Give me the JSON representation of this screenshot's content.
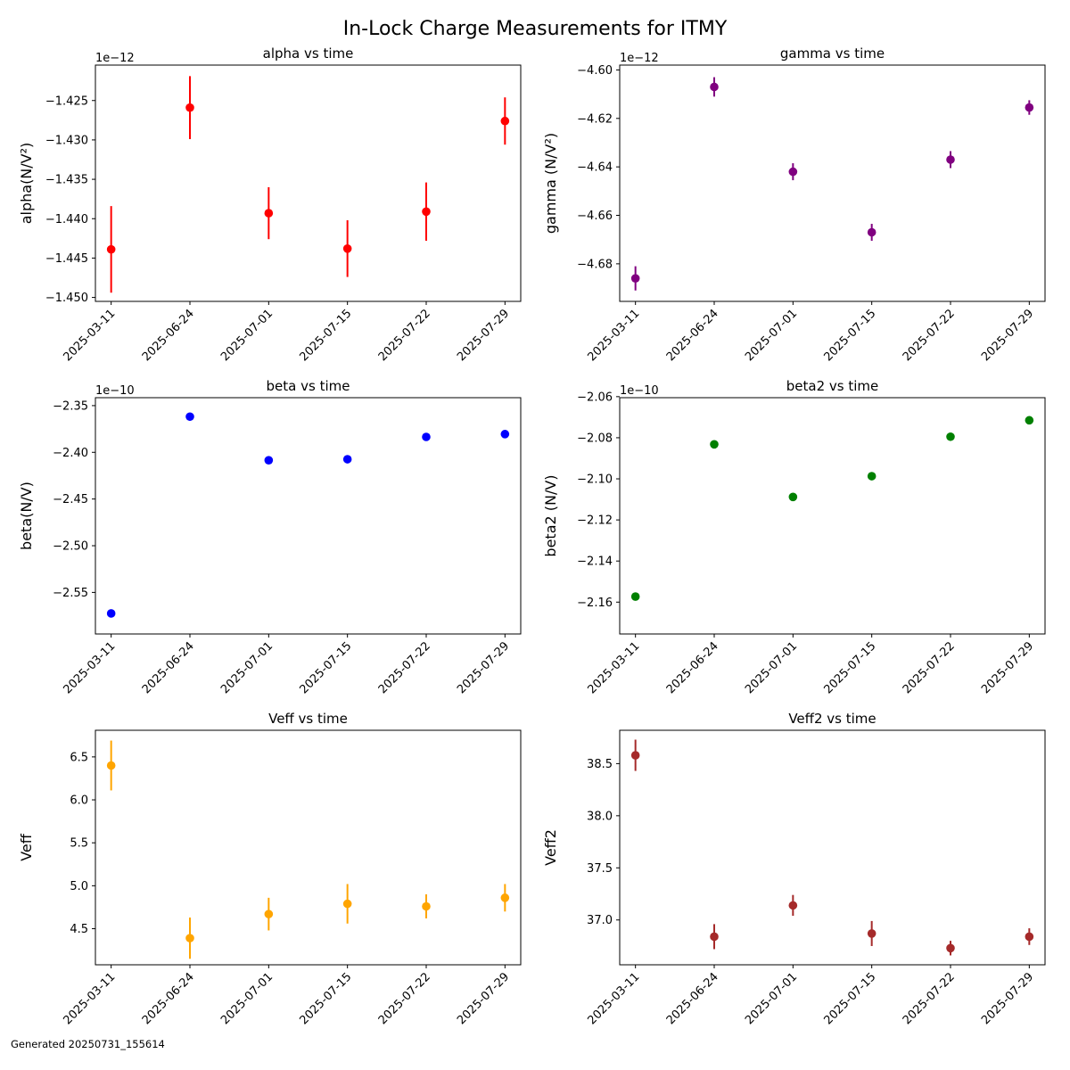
{
  "page": {
    "title": "In-Lock Charge Measurements for ITMY",
    "footer": "Generated 20250731_155614"
  },
  "chart_data": [
    {
      "type": "scatter",
      "title": "alpha vs time",
      "ylabel": "alpha(N/V²)",
      "scale_label": "1e−12",
      "color": "#ff0000",
      "dates": [
        "2025-03-11",
        "2025-06-24",
        "2025-07-01",
        "2025-07-15",
        "2025-07-22",
        "2025-07-29"
      ],
      "y": [
        -1.4439e-12,
        -1.4259e-12,
        -1.4393e-12,
        -1.4438e-12,
        -1.4391e-12,
        -1.4276e-12
      ],
      "yerr": [
        5.5e-15,
        4e-15,
        3.3e-15,
        3.6e-15,
        3.7e-15,
        3e-15
      ],
      "ylim": [
        -1.4505e-12,
        -1.4205e-12
      ],
      "yticks": [
        -1.45e-12,
        -1.445e-12,
        -1.44e-12,
        -1.435e-12,
        -1.43e-12,
        -1.425e-12
      ],
      "yticklabels": [
        "−1.450",
        "−1.445",
        "−1.440",
        "−1.435",
        "−1.430",
        "−1.425"
      ],
      "grid": false
    },
    {
      "type": "scatter",
      "title": "gamma vs time",
      "ylabel": "gamma (N/V²)",
      "scale_label": "1e−12",
      "color": "#800080",
      "dates": [
        "2025-03-11",
        "2025-06-24",
        "2025-07-01",
        "2025-07-15",
        "2025-07-22",
        "2025-07-29"
      ],
      "y": [
        -4.686e-12,
        -4.607e-12,
        -4.642e-12,
        -4.667e-12,
        -4.637e-12,
        -4.6155e-12
      ],
      "yerr": [
        5e-15,
        4e-15,
        3.5e-15,
        3.5e-15,
        3.5e-15,
        3e-15
      ],
      "ylim": [
        -4.6955e-12,
        -4.598e-12
      ],
      "yticks": [
        -4.68e-12,
        -4.66e-12,
        -4.64e-12,
        -4.62e-12,
        -4.6e-12
      ],
      "yticklabels": [
        "−4.68",
        "−4.66",
        "−4.64",
        "−4.62",
        "−4.60"
      ],
      "grid": false
    },
    {
      "type": "scatter",
      "title": "beta vs time",
      "ylabel": "beta(N/V)",
      "scale_label": "1e−10",
      "color": "#0000ff",
      "dates": [
        "2025-03-11",
        "2025-06-24",
        "2025-07-01",
        "2025-07-15",
        "2025-07-22",
        "2025-07-29"
      ],
      "y": [
        -2.5725e-10,
        -2.3618e-10,
        -2.4085e-10,
        -2.4074e-10,
        -2.3835e-10,
        -2.3805e-10
      ],
      "yerr": [
        1.2e-13,
        1.1e-13,
        9e-14,
        1e-13,
        6e-14,
        7e-14
      ],
      "ylim": [
        -2.5945e-10,
        -2.3415e-10
      ],
      "yticks": [
        -2.55e-10,
        -2.5e-10,
        -2.45e-10,
        -2.4e-10,
        -2.35e-10
      ],
      "yticklabels": [
        "−2.55",
        "−2.50",
        "−2.45",
        "−2.40",
        "−2.35"
      ],
      "grid": false
    },
    {
      "type": "scatter",
      "title": "beta2 vs time",
      "ylabel": "beta2 (N/V)",
      "scale_label": "1e−10",
      "color": "#008000",
      "dates": [
        "2025-03-11",
        "2025-06-24",
        "2025-07-01",
        "2025-07-15",
        "2025-07-22",
        "2025-07-29"
      ],
      "y": [
        -2.1573e-10,
        -2.0832e-10,
        -2.1088e-10,
        -2.0987e-10,
        -2.0795e-10,
        -2.0715e-10
      ],
      "yerr": [
        1.3e-13,
        1.1e-13,
        8e-14,
        1e-13,
        6e-14,
        7e-14
      ],
      "ylim": [
        -2.1755e-10,
        -2.0605e-10
      ],
      "yticks": [
        -2.16e-10,
        -2.14e-10,
        -2.12e-10,
        -2.1e-10,
        -2.08e-10,
        -2.06e-10
      ],
      "yticklabels": [
        "−2.16",
        "−2.14",
        "−2.12",
        "−2.10",
        "−2.08",
        "−2.06"
      ],
      "grid": false
    },
    {
      "type": "scatter",
      "title": "Veff vs time",
      "ylabel": "Veff",
      "scale_label": "",
      "color": "#ffa500",
      "dates": [
        "2025-03-11",
        "2025-06-24",
        "2025-07-01",
        "2025-07-15",
        "2025-07-22",
        "2025-07-29"
      ],
      "y": [
        6.4,
        4.39,
        4.67,
        4.79,
        4.76,
        4.86
      ],
      "yerr": [
        0.29,
        0.24,
        0.19,
        0.23,
        0.14,
        0.16
      ],
      "ylim": [
        4.08,
        6.81
      ],
      "yticks": [
        4.5,
        5.0,
        5.5,
        6.0,
        6.5
      ],
      "yticklabels": [
        "4.5",
        "5.0",
        "5.5",
        "6.0",
        "6.5"
      ],
      "grid": false
    },
    {
      "type": "scatter",
      "title": "Veff2 vs time",
      "ylabel": "Veff2",
      "scale_label": "",
      "color": "#a52a2a",
      "dates": [
        "2025-03-11",
        "2025-06-24",
        "2025-07-01",
        "2025-07-15",
        "2025-07-22",
        "2025-07-29"
      ],
      "y": [
        38.58,
        36.84,
        37.14,
        36.87,
        36.73,
        36.84
      ],
      "yerr": [
        0.15,
        0.12,
        0.1,
        0.12,
        0.07,
        0.08
      ],
      "ylim": [
        36.57,
        38.82
      ],
      "yticks": [
        37.0,
        37.5,
        38.0,
        38.5
      ],
      "yticklabels": [
        "37.0",
        "37.5",
        "38.0",
        "38.5"
      ],
      "grid": false
    }
  ]
}
